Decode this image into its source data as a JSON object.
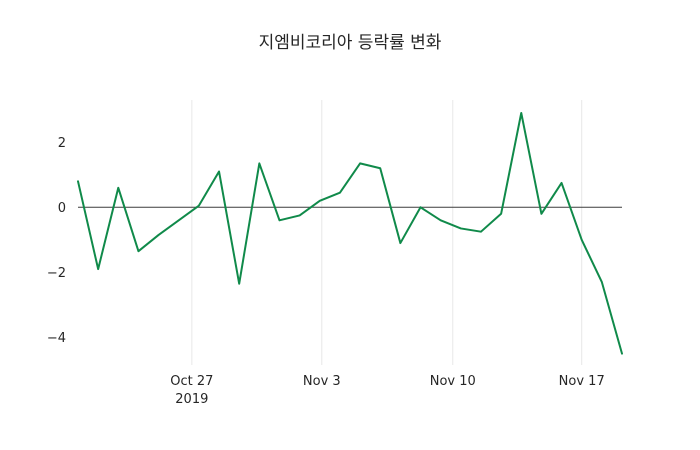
{
  "title": "지엠비코리아 등락률 변화",
  "chart_data": {
    "type": "line",
    "title": "지엠비코리아 등락률 변화",
    "xlabel": "",
    "ylabel": "",
    "legend": "none",
    "grid": "vertical-only",
    "zero_line": true,
    "xlim": [
      0,
      27
    ],
    "ylim": [
      -4.85,
      3.3
    ],
    "y_ticks": [
      {
        "label": "2",
        "value": 2
      },
      {
        "label": "0",
        "value": 0
      },
      {
        "label": "−2",
        "value": -2
      },
      {
        "label": "−4",
        "value": -4
      }
    ],
    "x_ticks": [
      {
        "label": "Oct 27",
        "sublabel": "2019",
        "x": 5.65
      },
      {
        "label": "Nov 3",
        "x": 12.1
      },
      {
        "label": "Nov 10",
        "x": 18.6
      },
      {
        "label": "Nov 17",
        "x": 25.0
      }
    ],
    "series": [
      {
        "name": "등락률",
        "color": "#108a4a",
        "values": [
          0.8,
          -1.9,
          0.6,
          -1.35,
          -0.85,
          -0.4,
          0.05,
          1.1,
          -2.35,
          1.35,
          -0.4,
          -0.25,
          0.2,
          0.45,
          1.35,
          1.2,
          -1.1,
          0.0,
          -0.4,
          -0.65,
          -0.75,
          -0.2,
          2.9,
          -0.2,
          0.75,
          -1.0,
          -2.3,
          -4.5
        ]
      }
    ]
  }
}
